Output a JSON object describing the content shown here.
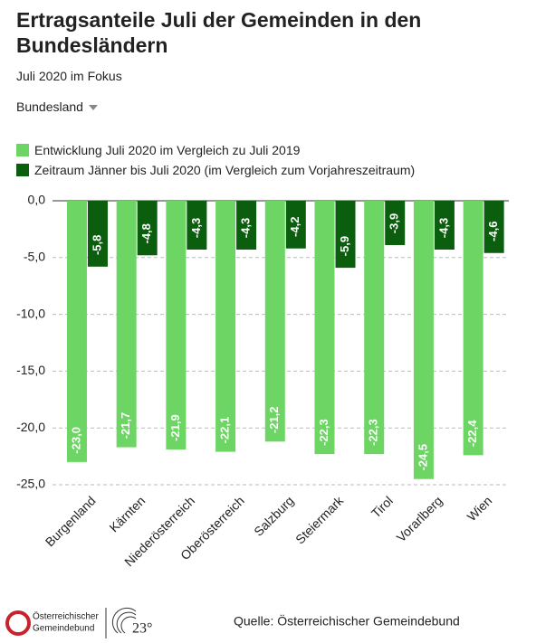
{
  "chart_data": {
    "type": "bar",
    "title": "Ertragsanteile Juli der Gemeinden in den Bundesländern",
    "subtitle": "Juli 2020 im Fokus",
    "categories": [
      "Burgenland",
      "Kärnten",
      "Niederösterreich",
      "Oberösterreich",
      "Salzburg",
      "Steiermark",
      "Tirol",
      "Vorarlberg",
      "Wien"
    ],
    "series": [
      {
        "name": "Entwicklung Juli 2020 im Vergleich zu Juli 2019",
        "color": "#6dd564",
        "values": [
          -23.0,
          -21.7,
          -21.9,
          -22.1,
          -21.2,
          -22.3,
          -22.3,
          -24.5,
          -22.4
        ],
        "value_labels": [
          "-23,0",
          "-21,7",
          "-21,9",
          "-22,1",
          "-21,2",
          "-22,3",
          "-22,3",
          "-24,5",
          "-22,4"
        ]
      },
      {
        "name": "Zeitraum Jänner bis Juli 2020 (im Vergleich zum Vorjahreszeitraum)",
        "color": "#0b5e0e",
        "values": [
          -5.8,
          -4.8,
          -4.3,
          -4.3,
          -4.2,
          -5.9,
          -3.9,
          -4.3,
          -4.6
        ],
        "value_labels": [
          "-5,8",
          "-4,8",
          "-4,3",
          "-4,3",
          "-4,2",
          "-5,9",
          "-3,9",
          "-4,3",
          "-4,6"
        ]
      }
    ],
    "ylim": [
      -25,
      0
    ],
    "yticks": [
      {
        "value": 0,
        "label": "0,0"
      },
      {
        "value": -5,
        "label": "-5,0"
      },
      {
        "value": -10,
        "label": "-10,0"
      },
      {
        "value": -15,
        "label": "-15,0"
      },
      {
        "value": -20,
        "label": "-20,0"
      },
      {
        "value": -25,
        "label": "-25,0"
      }
    ],
    "grid": true
  },
  "filter_label": "Bundesland",
  "footer": {
    "logo_lines": [
      "Österreichischer",
      "Gemeindebund"
    ],
    "badge": "23°",
    "source": "Quelle: Österreichischer Gemeindebund"
  }
}
